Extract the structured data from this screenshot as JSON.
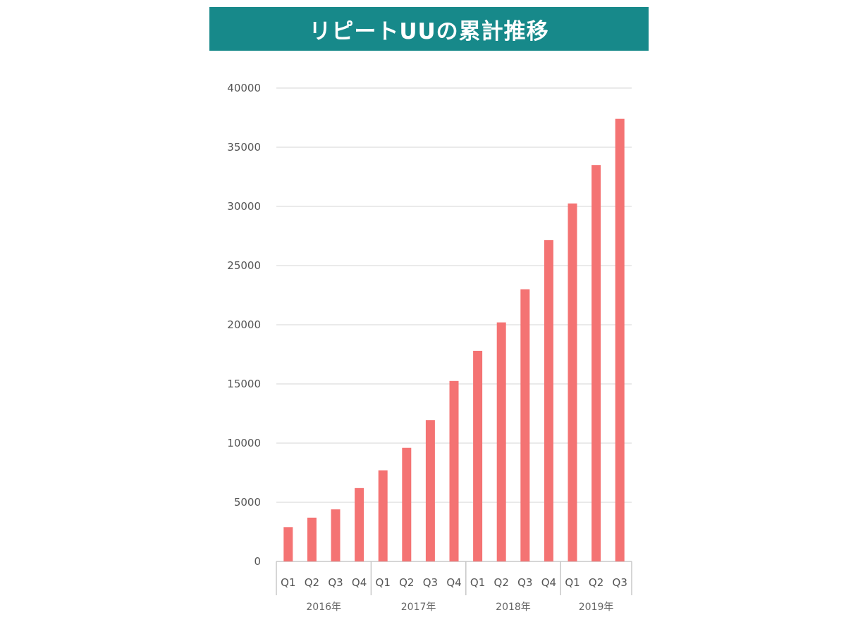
{
  "title": "リピートUUの累計推移",
  "colors": {
    "title_bg": "#17898a",
    "bar": "#f47373",
    "grid": "#e3e3e3",
    "axis": "#c8c8c8"
  },
  "chart_data": {
    "type": "bar",
    "title": "リピートUUの累計推移",
    "xlabel": "",
    "ylabel": "",
    "ylim": [
      0,
      40000
    ],
    "yticks": [
      0,
      5000,
      10000,
      15000,
      20000,
      25000,
      30000,
      35000,
      40000
    ],
    "grid": true,
    "legend": "none",
    "groups": [
      {
        "label": "2016年",
        "categories": [
          "Q1",
          "Q2",
          "Q3",
          "Q4"
        ]
      },
      {
        "label": "2017年",
        "categories": [
          "Q1",
          "Q2",
          "Q3",
          "Q4"
        ]
      },
      {
        "label": "2018年",
        "categories": [
          "Q1",
          "Q2",
          "Q3",
          "Q4"
        ]
      },
      {
        "label": "2019年",
        "categories": [
          "Q1",
          "Q2",
          "Q3"
        ]
      }
    ],
    "categories": [
      "Q1",
      "Q2",
      "Q3",
      "Q4",
      "Q1",
      "Q2",
      "Q3",
      "Q4",
      "Q1",
      "Q2",
      "Q3",
      "Q4",
      "Q1",
      "Q2",
      "Q3"
    ],
    "values": [
      2900,
      3700,
      4400,
      6200,
      7700,
      9600,
      11950,
      15250,
      17800,
      20200,
      23000,
      27150,
      30250,
      33500,
      37400
    ]
  }
}
